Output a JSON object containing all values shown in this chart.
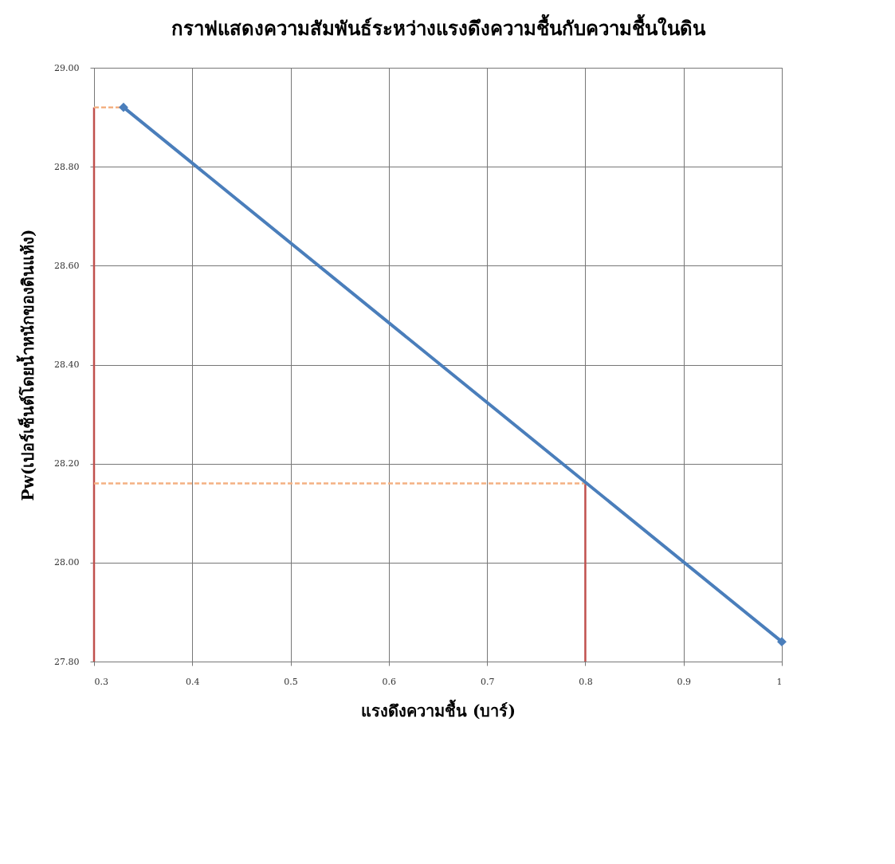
{
  "chart_data": {
    "type": "line",
    "title": "กราฟแสดงความสัมพันธ์ระหว่างแรงดึงความชื้นกับความชื้นในดิน",
    "xlabel": "แรงดึงความชื้น (บาร์)",
    "ylabel": "Pw(เปอร์เซ็นต์โดยน้ำหนักของดินแห้ง)",
    "series": [
      {
        "color": "#c0504d",
        "x": [
          0.3,
          0.3
        ],
        "values": [
          27.8,
          28.92
        ],
        "line_style": "solid",
        "marker": "none"
      },
      {
        "color": "#c0504d",
        "x": [
          0.8,
          0.8
        ],
        "values": [
          27.8,
          28.16
        ],
        "line_style": "solid",
        "marker": "none"
      },
      {
        "color": "#f4b183",
        "x": [
          0.3,
          0.33
        ],
        "values": [
          28.92,
          28.92
        ],
        "line_style": "dashed",
        "marker": "none"
      },
      {
        "color": "#f4b183",
        "x": [
          0.3,
          0.8
        ],
        "values": [
          28.16,
          28.16
        ],
        "line_style": "dashed",
        "marker": "none"
      },
      {
        "color": "#4a7ebb",
        "x": [
          0.33,
          1
        ],
        "values": [
          28.92,
          27.84
        ],
        "line_style": "solid",
        "marker": "diamond"
      }
    ],
    "xlim": [
      0.3,
      1
    ],
    "xticks": [
      0.3,
      0.4,
      0.5,
      0.6,
      0.7,
      0.8,
      0.9,
      1
    ],
    "ylim": [
      27.8,
      29
    ],
    "yticks": [
      {
        "value": 27.8,
        "label": "27.80"
      },
      {
        "value": 28,
        "label": "28.00"
      },
      {
        "value": 28.2,
        "label": "28.20"
      },
      {
        "value": 28.4,
        "label": "28.40"
      },
      {
        "value": 28.6,
        "label": "28.60"
      },
      {
        "value": 28.8,
        "label": "28.80"
      },
      {
        "value": 29,
        "label": "29.00"
      }
    ],
    "grid": true
  }
}
